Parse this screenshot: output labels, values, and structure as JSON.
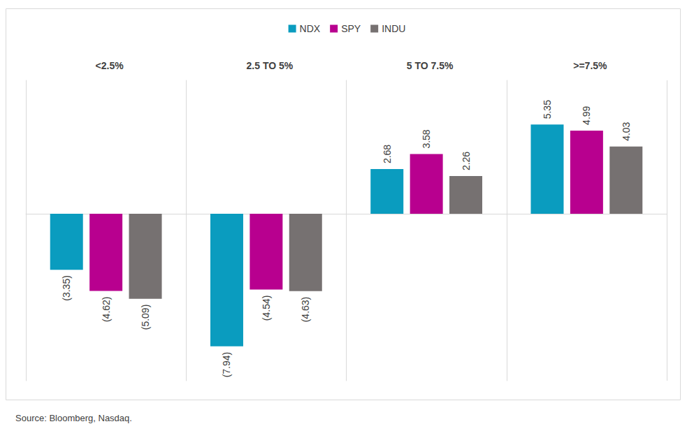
{
  "chart_data": {
    "type": "bar",
    "categories": [
      "<2.5%",
      "2.5 TO 5%",
      "5 TO 7.5%",
      ">=7.5%"
    ],
    "series": [
      {
        "name": "NDX",
        "color": "#0a9cbf",
        "values": [
          -3.35,
          -7.94,
          2.68,
          5.35
        ],
        "value_labels": [
          "(3.35)",
          "(7.94)",
          "2.68",
          "5.35"
        ]
      },
      {
        "name": "SPY",
        "color": "#b8008f",
        "values": [
          -4.62,
          -4.54,
          3.58,
          4.99
        ],
        "value_labels": [
          "(4.62)",
          "(4.54)",
          "3.58",
          "4.99"
        ]
      },
      {
        "name": "INDU",
        "color": "#767171",
        "values": [
          -5.09,
          -4.63,
          2.26,
          4.03
        ],
        "value_labels": [
          "(5.09)",
          "(4.63)",
          "2.26",
          "4.03"
        ]
      }
    ],
    "ylim": [
      -10,
      8
    ],
    "yticks": [
      0
    ],
    "grid": true,
    "legend": "top",
    "data_labels": true,
    "tick_labels": false,
    "source": "Source: Bloomberg, Nasdaq."
  }
}
